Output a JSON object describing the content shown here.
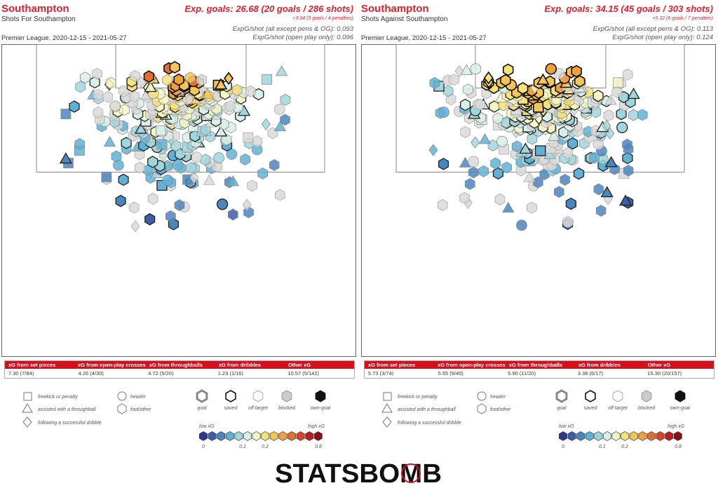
{
  "panels": [
    {
      "team": "Southampton",
      "subtitle": "Shots For Southampton",
      "xg_main": "Exp. goals: 26.68 (20 goals / 286 shots)",
      "xg_pens": "+3.04 (3 goals / 4 penalties)",
      "xg_line1": "ExpG/shot (all except pens & OG): 0.093",
      "xg_line2": "ExpG/shot (open play only): 0.096",
      "date": "Premier League, 2020-12-15 - 2021-05-27",
      "stats": [
        {
          "label": "xG from set pieces",
          "value": "7.30 (7/84)"
        },
        {
          "label": "xG from open-play crosses",
          "value": "4.26 (4/30)"
        },
        {
          "label": "xG from throughballs",
          "value": "4.72 (5/20)"
        },
        {
          "label": "xG from dribbles",
          "value": "1.23 (1/16)"
        },
        {
          "label": "Other xG",
          "value": "10.57 (5/142)"
        }
      ]
    },
    {
      "team": "Southampton",
      "subtitle": "Shots Against Southampton",
      "xg_main": "Exp. goals: 34.15 (45 goals / 303 shots)",
      "xg_pens": "+5.32 (6 goals / 7 penalties)",
      "xg_line1": "ExpG/shot (all except pens & OG): 0.113",
      "xg_line2": "ExpG/shot (open play only): 0.124",
      "date": "Premier League, 2020-12-15 - 2021-05-27",
      "stats": [
        {
          "label": "xG from set pieces",
          "value": "5.73 (3/74)"
        },
        {
          "label": "xG from open-play crosses",
          "value": "5.55 (9/40)"
        },
        {
          "label": "xG from throughballs",
          "value": "5.90 (11/20)"
        },
        {
          "label": "xG from dribbles",
          "value": "3.38 (6/17)"
        },
        {
          "label": "Other xG",
          "value": "15.30 (20/157)"
        }
      ]
    }
  ],
  "legend": {
    "type_labels": [
      "freekick or penalty",
      "assisted with a throughball",
      "following a successful dribble"
    ],
    "body_labels": [
      "header",
      "foot/other"
    ],
    "outcome_labels": [
      "goal",
      "saved",
      "off target",
      "blocked",
      "own-goal"
    ],
    "low_label": "low xG",
    "high_label": "high xG",
    "scale_ticks": [
      "0",
      "0.1",
      "0.2",
      "0.8"
    ],
    "scale_colors": [
      "#2b3990",
      "#3a5fa8",
      "#4a86c0",
      "#5fb2d6",
      "#9fd6de",
      "#d8f0e8",
      "#f5f7c2",
      "#f7e27a",
      "#f5c55a",
      "#ef9f3f",
      "#e5702e",
      "#d6452a",
      "#b81e22",
      "#8a1016"
    ]
  },
  "logo_text": "STATSBOMB",
  "chart_data": [
    {
      "type": "scatter",
      "title": "Shots For Southampton",
      "pitch": "attacking half, goal at top",
      "total_shots": 286,
      "goals": 20,
      "xg": 26.68,
      "penalties": {
        "xg": 3.04,
        "goals": 3,
        "count": 4
      },
      "xg_per_shot_non_penalty": 0.093,
      "xg_per_shot_open_play": 0.096,
      "categories": [
        "set pieces",
        "open-play crosses",
        "throughballs",
        "dribbles",
        "other"
      ],
      "series": [
        {
          "name": "xG",
          "values": [
            7.3,
            4.26,
            4.72,
            1.23,
            10.57
          ]
        },
        {
          "name": "goals",
          "values": [
            7,
            4,
            5,
            1,
            5
          ]
        },
        {
          "name": "shots",
          "values": [
            84,
            30,
            20,
            16,
            142
          ]
        }
      ]
    },
    {
      "type": "scatter",
      "title": "Shots Against Southampton",
      "pitch": "attacking half, goal at top",
      "total_shots": 303,
      "goals": 45,
      "xg": 34.15,
      "penalties": {
        "xg": 5.32,
        "goals": 6,
        "count": 7
      },
      "xg_per_shot_non_penalty": 0.113,
      "xg_per_shot_open_play": 0.124,
      "categories": [
        "set pieces",
        "open-play crosses",
        "throughballs",
        "dribbles",
        "other"
      ],
      "series": [
        {
          "name": "xG",
          "values": [
            5.73,
            5.55,
            5.9,
            3.38,
            15.3
          ]
        },
        {
          "name": "goals",
          "values": [
            3,
            9,
            11,
            6,
            20
          ]
        },
        {
          "name": "shots",
          "values": [
            74,
            40,
            20,
            17,
            157
          ]
        }
      ]
    }
  ]
}
